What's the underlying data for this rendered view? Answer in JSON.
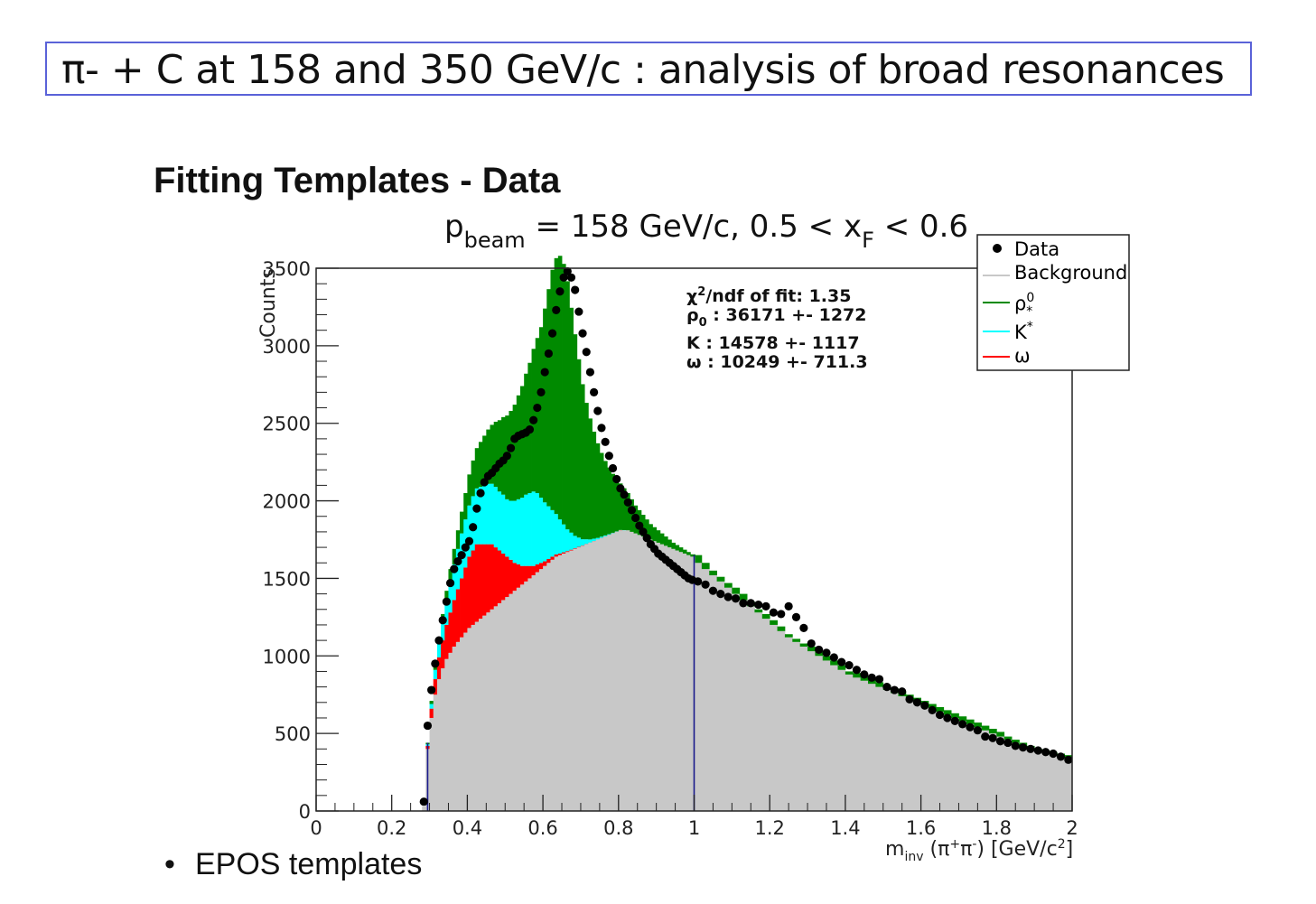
{
  "header": {
    "title": "π- + C at 158 and 350 GeV/c :  analysis of broad resonances"
  },
  "section": {
    "title": "Fitting Templates - Data"
  },
  "bullets": [
    "EPOS templates"
  ],
  "colors": {
    "background": "#c8c8c8",
    "rho0": "#008a00",
    "K": "#00ffff",
    "omega": "#ff0000",
    "data": "#000000",
    "divider": "#1a1a8c",
    "title_border": "#5a62d8"
  },
  "chart_data": {
    "type": "bar",
    "plot_title": {
      "main": "p",
      "sub": "beam",
      "middle": " = 158 GeV/c, 0.5 < x",
      "sub2": "F",
      "tail": " < 0.6"
    },
    "ylabel": "Counts",
    "xlabel": {
      "m": "m",
      "sub": "inv",
      "rest_a": " (π",
      "sup1": "+",
      "rest_b": "π",
      "sup2": "-",
      "rest_c": ") [GeV/c",
      "sup3": "2",
      "rest_d": "]"
    },
    "xlim": [
      0,
      2
    ],
    "ylim": [
      0,
      3500
    ],
    "x_ticks": [
      "0",
      "0.2",
      "0.4",
      "0.6",
      "0.8",
      "1",
      "1.2",
      "1.4",
      "1.6",
      "1.8",
      "2"
    ],
    "y_ticks": [
      "0",
      "500",
      "1000",
      "1500",
      "2000",
      "2500",
      "3000",
      "3500"
    ],
    "legend": {
      "placement": "top-right",
      "entries": [
        {
          "label": "Data",
          "marker": "dot"
        },
        {
          "label": "Background",
          "marker": "line"
        },
        {
          "label": "ρ",
          "sup": "0",
          "sub": "*",
          "marker": "line"
        },
        {
          "label": "K",
          "sup": "*",
          "marker": "line"
        },
        {
          "label": "ω",
          "marker": "line"
        }
      ]
    },
    "fit_results": [
      {
        "label": "χ",
        "sup": "2",
        "rest": "/ndf of fit: 1.35"
      },
      {
        "label": "ρ",
        "sub": "0",
        "rest": " : 36171 +- 1272"
      },
      {
        "label": "K",
        "sub": "",
        "rest": "  : 14578 +- 1117"
      },
      {
        "label": "ω",
        "sub": "",
        "rest": " : 10249 +- 711.3"
      }
    ],
    "vertical_lines_x": [
      0.295,
      1.0
    ],
    "bin_centers": [
      0.285,
      0.295,
      0.305,
      0.315,
      0.325,
      0.335,
      0.345,
      0.355,
      0.365,
      0.375,
      0.385,
      0.395,
      0.405,
      0.415,
      0.425,
      0.435,
      0.445,
      0.455,
      0.465,
      0.475,
      0.485,
      0.495,
      0.505,
      0.515,
      0.525,
      0.535,
      0.545,
      0.555,
      0.565,
      0.575,
      0.585,
      0.595,
      0.605,
      0.615,
      0.625,
      0.635,
      0.645,
      0.655,
      0.665,
      0.675,
      0.685,
      0.695,
      0.705,
      0.715,
      0.725,
      0.735,
      0.745,
      0.755,
      0.765,
      0.775,
      0.785,
      0.795,
      0.805,
      0.815,
      0.825,
      0.835,
      0.845,
      0.855,
      0.865,
      0.875,
      0.885,
      0.895,
      0.905,
      0.915,
      0.925,
      0.935,
      0.945,
      0.955,
      0.965,
      0.975,
      0.985,
      0.995,
      1.01,
      1.03,
      1.05,
      1.07,
      1.09,
      1.11,
      1.13,
      1.15,
      1.17,
      1.19,
      1.21,
      1.23,
      1.25,
      1.27,
      1.29,
      1.31,
      1.33,
      1.35,
      1.37,
      1.39,
      1.41,
      1.43,
      1.45,
      1.47,
      1.49,
      1.51,
      1.53,
      1.55,
      1.57,
      1.59,
      1.61,
      1.63,
      1.65,
      1.67,
      1.69,
      1.71,
      1.73,
      1.75,
      1.77,
      1.79,
      1.81,
      1.83,
      1.85,
      1.87,
      1.89,
      1.91,
      1.93,
      1.95,
      1.97,
      1.99
    ],
    "series": [
      {
        "name": "Background",
        "values": [
          30,
          400,
          600,
          750,
          850,
          920,
          980,
          1020,
          1060,
          1090,
          1120,
          1150,
          1180,
          1200,
          1220,
          1240,
          1260,
          1280,
          1300,
          1320,
          1340,
          1360,
          1380,
          1400,
          1420,
          1440,
          1460,
          1480,
          1500,
          1520,
          1540,
          1560,
          1580,
          1600,
          1620,
          1640,
          1650,
          1660,
          1670,
          1680,
          1690,
          1700,
          1710,
          1720,
          1730,
          1740,
          1750,
          1760,
          1770,
          1780,
          1790,
          1800,
          1810,
          1810,
          1810,
          1800,
          1790,
          1780,
          1770,
          1760,
          1750,
          1740,
          1730,
          1720,
          1710,
          1700,
          1690,
          1680,
          1670,
          1660,
          1650,
          1640,
          1600,
          1560,
          1520,
          1480,
          1440,
          1400,
          1360,
          1320,
          1280,
          1240,
          1200,
          1160,
          1120,
          1090,
          1060,
          1030,
          1000,
          970,
          940,
          910,
          880,
          860,
          840,
          820,
          800,
          780,
          760,
          740,
          720,
          700,
          680,
          660,
          640,
          620,
          600,
          580,
          560,
          540,
          520,
          500,
          480,
          460,
          440,
          420,
          400,
          380,
          370,
          360,
          350,
          340
        ]
      },
      {
        "name": "ω",
        "values": [
          0,
          20,
          60,
          100,
          140,
          180,
          220,
          260,
          300,
          340,
          380,
          420,
          460,
          480,
          500,
          480,
          460,
          440,
          420,
          380,
          340,
          300,
          260,
          220,
          180,
          150,
          120,
          100,
          80,
          60,
          50,
          40,
          30,
          25,
          20,
          15,
          10,
          8,
          6,
          5,
          4,
          3,
          2,
          2,
          1,
          1,
          1,
          1,
          1,
          1,
          1,
          1,
          1,
          0,
          0,
          0,
          0,
          0,
          0,
          0,
          0,
          0,
          0,
          0,
          0,
          0,
          0,
          0,
          0,
          0,
          0,
          0,
          0,
          0,
          0,
          0,
          0,
          0,
          0,
          0,
          0,
          0,
          0,
          0,
          0,
          0,
          0,
          0,
          0,
          0,
          0,
          0,
          0,
          0,
          0,
          0,
          0,
          0,
          0,
          0,
          0,
          0,
          0,
          0,
          0,
          0,
          0,
          0,
          0,
          0,
          0,
          0,
          0,
          0,
          0,
          0,
          0,
          0,
          0,
          0,
          0,
          0
        ]
      },
      {
        "name": "K",
        "values": [
          0,
          10,
          30,
          60,
          90,
          120,
          160,
          200,
          230,
          260,
          290,
          310,
          330,
          350,
          360,
          370,
          380,
          390,
          390,
          390,
          380,
          380,
          370,
          380,
          400,
          420,
          440,
          460,
          470,
          480,
          460,
          420,
          380,
          340,
          300,
          260,
          220,
          180,
          140,
          110,
          80,
          60,
          40,
          30,
          20,
          15,
          10,
          8,
          6,
          4,
          3,
          2,
          1,
          1,
          0,
          0,
          0,
          0,
          0,
          0,
          0,
          0,
          0,
          0,
          0,
          0,
          0,
          0,
          0,
          0,
          0,
          0,
          0,
          0,
          0,
          0,
          0,
          0,
          0,
          0,
          0,
          0,
          0,
          0,
          0,
          0,
          0,
          0,
          0,
          0,
          0,
          0,
          0,
          0,
          0,
          0,
          0,
          0,
          0,
          0,
          0,
          0,
          0,
          0,
          0,
          0,
          0,
          0,
          0,
          0,
          0,
          0,
          0,
          0,
          0,
          0,
          0,
          0,
          0,
          0,
          0,
          0
        ]
      },
      {
        "name": "ρ0",
        "values": [
          0,
          10,
          20,
          30,
          40,
          50,
          60,
          80,
          100,
          120,
          140,
          170,
          200,
          230,
          260,
          290,
          320,
          350,
          380,
          420,
          460,
          500,
          540,
          580,
          620,
          670,
          720,
          780,
          840,
          920,
          1000,
          1100,
          1250,
          1400,
          1550,
          1650,
          1700,
          1680,
          1600,
          1450,
          1300,
          1150,
          1000,
          880,
          780,
          690,
          610,
          540,
          480,
          430,
          380,
          340,
          300,
          270,
          240,
          210,
          180,
          160,
          140,
          120,
          100,
          90,
          80,
          70,
          60,
          50,
          40,
          35,
          30,
          25,
          20,
          15,
          50,
          40,
          30,
          30,
          30,
          40,
          40,
          30,
          20,
          30,
          30,
          30,
          20,
          20,
          20,
          30,
          30,
          30,
          30,
          30,
          20,
          30,
          30,
          30,
          30,
          30,
          30,
          30,
          30,
          30,
          30,
          30,
          30,
          30,
          30,
          30,
          30,
          30,
          30,
          30,
          30,
          20,
          20,
          20,
          20,
          20,
          20,
          20,
          20,
          20
        ]
      },
      {
        "name": "Data",
        "values": [
          60,
          550,
          780,
          950,
          1100,
          1230,
          1350,
          1470,
          1560,
          1610,
          1650,
          1700,
          1740,
          1830,
          1950,
          2050,
          2120,
          2160,
          2180,
          2210,
          2240,
          2260,
          2290,
          2340,
          2400,
          2420,
          2430,
          2440,
          2460,
          2520,
          2600,
          2700,
          2830,
          2950,
          3080,
          3230,
          3350,
          3440,
          3480,
          3440,
          3360,
          3220,
          3080,
          2960,
          2830,
          2700,
          2580,
          2470,
          2380,
          2290,
          2210,
          2140,
          2080,
          2040,
          1990,
          1940,
          1890,
          1840,
          1800,
          1760,
          1720,
          1690,
          1660,
          1640,
          1620,
          1600,
          1580,
          1560,
          1540,
          1520,
          1500,
          1490,
          1480,
          1460,
          1420,
          1400,
          1380,
          1370,
          1340,
          1340,
          1330,
          1320,
          1280,
          1270,
          1320,
          1250,
          1180,
          1080,
          1040,
          1020,
          990,
          960,
          940,
          910,
          880,
          860,
          850,
          800,
          780,
          770,
          720,
          700,
          680,
          650,
          620,
          600,
          580,
          560,
          540,
          520,
          480,
          470,
          450,
          440,
          420,
          410,
          400,
          390,
          380,
          370,
          350,
          330
        ]
      }
    ]
  }
}
